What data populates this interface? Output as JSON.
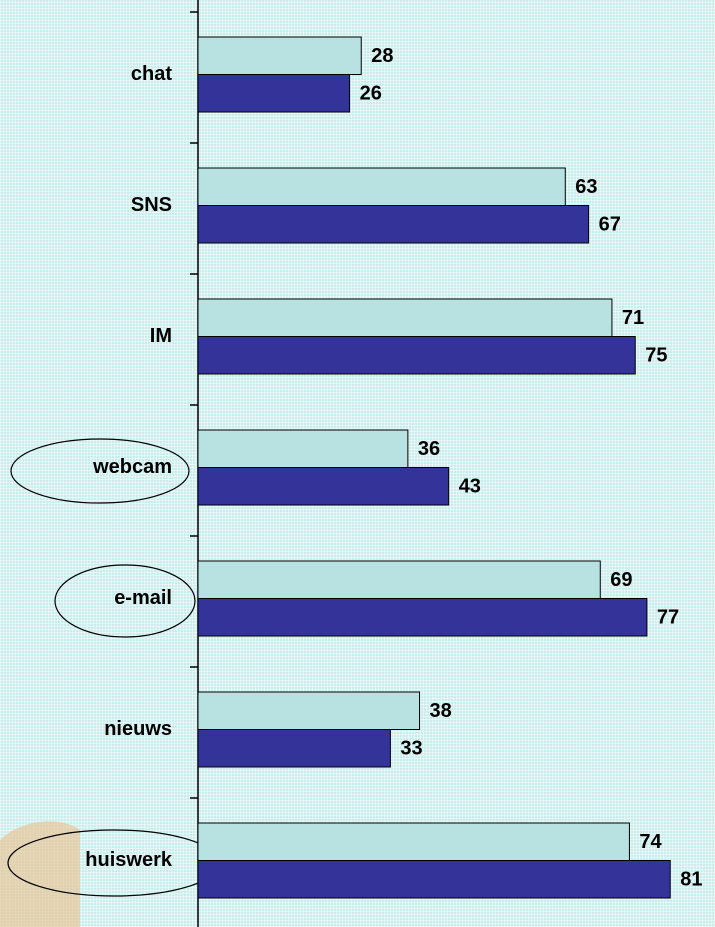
{
  "chart_data": {
    "type": "bar",
    "orientation": "horizontal",
    "categories": [
      "chat",
      "SNS",
      "IM",
      "webcam",
      "e-mail",
      "nieuws",
      "huiswerk"
    ],
    "series": [
      {
        "color": "#b8e2e2",
        "values": [
          28,
          63,
          71,
          36,
          69,
          38,
          74
        ]
      },
      {
        "color": "#333399",
        "values": [
          26,
          67,
          75,
          43,
          77,
          33,
          81
        ]
      }
    ]
  }
}
